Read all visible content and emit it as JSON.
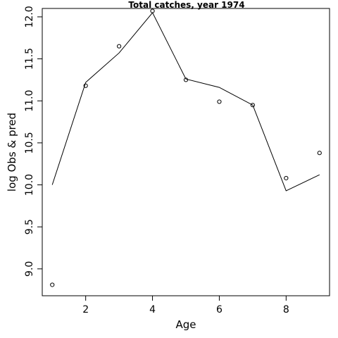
{
  "chart_data": {
    "type": "line",
    "title": "Total catches, year 1974",
    "xlabel": "Age",
    "ylabel": "log Obs & pred",
    "xlim": [
      0.7,
      9.3
    ],
    "ylim": [
      8.68,
      12.1
    ],
    "xticks": [
      2,
      4,
      6,
      8
    ],
    "xtick_labels": [
      "2",
      "4",
      "6",
      "8"
    ],
    "yticks": [
      9.0,
      9.5,
      10.0,
      10.5,
      11.0,
      11.5,
      12.0
    ],
    "ytick_labels": [
      "9.0",
      "9.5",
      "10.0",
      "10.5",
      "11.0",
      "11.5",
      "12.0"
    ],
    "grid": false,
    "series": [
      {
        "style": "points",
        "color": "#000000",
        "x": [
          1,
          2,
          3,
          4,
          5,
          6,
          7,
          8,
          9
        ],
        "y": [
          8.81,
          11.18,
          11.65,
          12.07,
          11.25,
          10.99,
          10.95,
          10.08,
          10.38
        ]
      },
      {
        "style": "line",
        "color": "#000000",
        "x": [
          1,
          2,
          3,
          4,
          5,
          6,
          7,
          8,
          9
        ],
        "y": [
          10.0,
          11.22,
          11.57,
          12.05,
          11.26,
          11.16,
          10.95,
          9.93,
          10.12
        ]
      }
    ]
  }
}
